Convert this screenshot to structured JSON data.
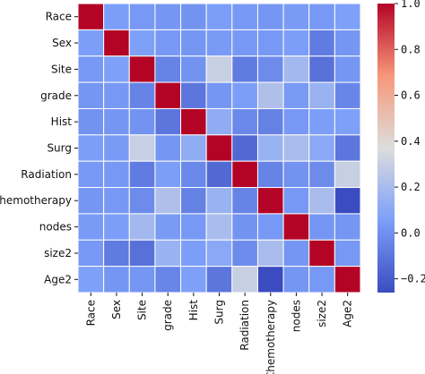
{
  "chart_data": {
    "type": "heatmap",
    "title": "",
    "xlabel": "",
    "ylabel": "",
    "labels": [
      "Race",
      "Sex",
      "Site",
      "grade",
      "Hist",
      "Surg",
      "Radiation",
      "Chemotherapy",
      "nodes",
      "size2",
      "Age2"
    ],
    "y_tick_labels_shown": [
      "Race",
      "Sex",
      "Site",
      "grade",
      "Hist",
      "Surg",
      "Radiation",
      "Chemotherapy",
      "nodes",
      "size2",
      "Age2"
    ],
    "matrix": [
      [
        1.0,
        0.05,
        0.03,
        0.02,
        0.01,
        0.05,
        0.03,
        0.02,
        0.04,
        0.03,
        0.06
      ],
      [
        0.05,
        1.0,
        0.06,
        0.03,
        0.02,
        0.04,
        0.03,
        0.03,
        0.05,
        -0.08,
        0.02
      ],
      [
        0.03,
        0.06,
        1.0,
        -0.05,
        0.01,
        0.3,
        -0.08,
        -0.02,
        0.18,
        -0.12,
        0.02
      ],
      [
        0.02,
        0.03,
        -0.05,
        1.0,
        -0.1,
        0.02,
        0.05,
        0.22,
        0.04,
        0.15,
        -0.04
      ],
      [
        0.01,
        0.02,
        0.01,
        -0.1,
        1.0,
        0.12,
        -0.03,
        -0.06,
        0.03,
        0.05,
        0.06
      ],
      [
        0.05,
        0.04,
        0.3,
        0.02,
        0.12,
        1.0,
        -0.15,
        0.15,
        0.2,
        0.1,
        -0.1
      ],
      [
        0.03,
        0.03,
        -0.08,
        0.05,
        -0.03,
        -0.15,
        1.0,
        -0.05,
        0.01,
        -0.02,
        0.3
      ],
      [
        0.02,
        0.03,
        -0.02,
        0.22,
        -0.06,
        0.15,
        -0.05,
        1.0,
        0.03,
        0.2,
        -0.26
      ],
      [
        0.04,
        0.05,
        0.18,
        0.04,
        0.03,
        0.2,
        0.01,
        0.03,
        1.0,
        0.02,
        0.02
      ],
      [
        0.03,
        -0.08,
        -0.12,
        0.15,
        0.05,
        0.1,
        -0.02,
        0.2,
        0.02,
        1.0,
        0.03
      ],
      [
        0.06,
        0.02,
        0.02,
        -0.04,
        0.06,
        -0.1,
        0.3,
        -0.26,
        0.02,
        0.03,
        1.0
      ]
    ],
    "colormap": "coolwarm",
    "vmin": -0.26,
    "vmax": 1.0,
    "colorbar_ticks": [
      1.0,
      0.8,
      0.6,
      0.4,
      0.2,
      0.0,
      -0.2
    ],
    "colorbar_tick_labels": [
      "1.0",
      "0.8",
      "0.6",
      "0.4",
      "0.2",
      "0.0",
      "−0.2"
    ],
    "grid": true,
    "cell_border_color": "#ffffff",
    "legend": "colorbar-right"
  }
}
